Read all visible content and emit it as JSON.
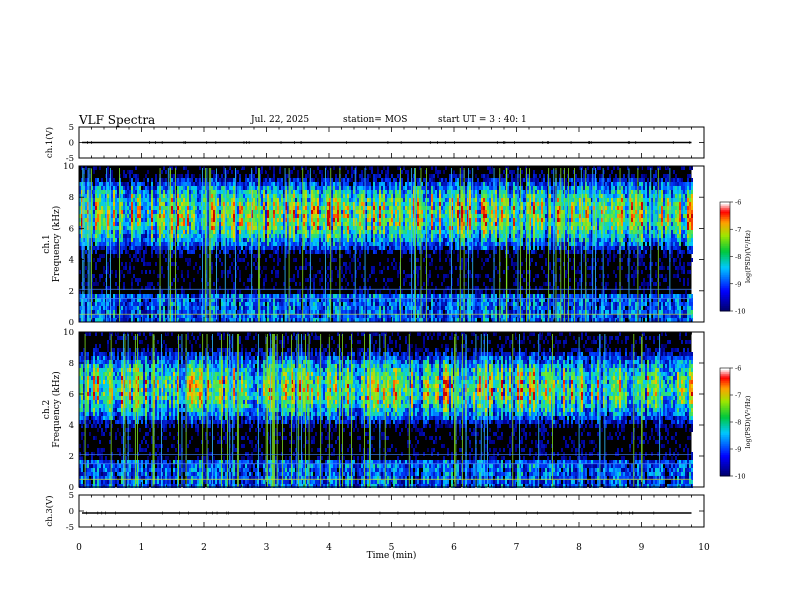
{
  "header": {
    "title": "VLF Spectra",
    "date": "Jul. 22, 2025",
    "station": "station= MOS",
    "start": "start UT = 3 : 40: 1"
  },
  "chart_data": [
    {
      "type": "line",
      "panel": "ch1-waveform",
      "ylabel": "ch.1(V)",
      "ylim": [
        -5,
        5
      ],
      "yticks": [
        "5",
        "0",
        "-5"
      ],
      "xlim": [
        0,
        10
      ],
      "baseline": 0
    },
    {
      "type": "heatmap",
      "panel": "ch1-spectrogram",
      "ylabel": "ch.1 Frequency (kHz)",
      "ylim": [
        0,
        10
      ],
      "yticks": [
        "0",
        "2",
        "4",
        "6",
        "8",
        "10"
      ],
      "xlim": [
        0,
        10
      ],
      "data_end_min": 9.8,
      "colorbar": {
        "label": "log(PSD)(V²/Hz)",
        "range": [
          -10,
          -6
        ],
        "ticks": [
          "-6",
          "-7",
          "-8",
          "-9",
          "-10"
        ]
      },
      "band_center_khz": 7.0
    },
    {
      "type": "heatmap",
      "panel": "ch2-spectrogram",
      "ylabel": "ch.2 Frequency (kHz)",
      "ylim": [
        0,
        10
      ],
      "yticks": [
        "0",
        "2",
        "4",
        "6",
        "8",
        "10"
      ],
      "xlim": [
        0,
        10
      ],
      "data_end_min": 9.8,
      "colorbar": {
        "label": "log(PSD)(V²/Hz)",
        "range": [
          -10,
          -6
        ],
        "ticks": [
          "-6",
          "-7",
          "-8",
          "-9",
          "-10"
        ]
      },
      "band_center_khz": 6.5
    },
    {
      "type": "line",
      "panel": "ch3-waveform",
      "ylabel": "ch.3(V)",
      "ylim": [
        -5,
        5
      ],
      "yticks": [
        "5",
        "0",
        "-5"
      ],
      "xlim": [
        0,
        10
      ],
      "baseline": 0
    }
  ],
  "xaxis": {
    "label": "Time (min)",
    "ticks": [
      "0",
      "1",
      "2",
      "3",
      "4",
      "5",
      "6",
      "7",
      "8",
      "9",
      "10"
    ]
  }
}
